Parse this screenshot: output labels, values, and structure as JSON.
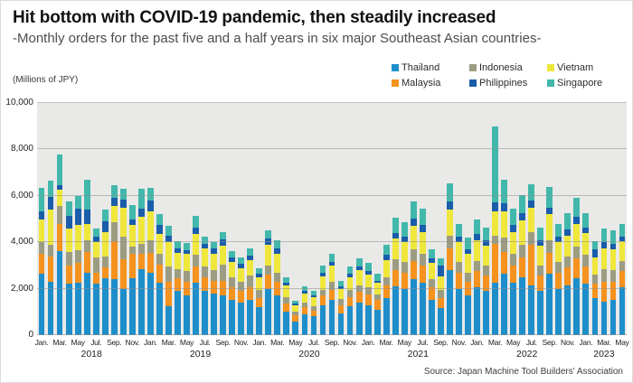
{
  "header": {
    "title": "Hit bottom with COVID-19 pandemic, then steadily increased",
    "subtitle": "-Monthly orders for the past five and a half years in six major Southeast Asian countries-"
  },
  "axis_unit_label": "(Millions of JPY)",
  "source": "Source: Japan Machine Tool Builders' Association",
  "legend": {
    "items": [
      "Thailand",
      "Malaysia",
      "Indonesia",
      "Philippines",
      "Vietnam",
      "Singapore"
    ]
  },
  "chart_data": {
    "type": "bar",
    "stacked": true,
    "title": "Hit bottom with COVID-19 pandemic, then steadily increased",
    "ylabel": "(Millions of JPY)",
    "ylim": [
      0,
      10000
    ],
    "y_ticks": [
      0,
      2000,
      4000,
      6000,
      8000,
      10000
    ],
    "y_tick_labels": [
      "0",
      "2,000",
      "4,000",
      "6,000",
      "8,000",
      "10,000"
    ],
    "x_month_ticks": [
      "Jan.",
      "Mar.",
      "May",
      "Jul.",
      "Sep.",
      "Nov."
    ],
    "years": [
      {
        "label": "2018",
        "months": 12
      },
      {
        "label": "2019",
        "months": 12
      },
      {
        "label": "2020",
        "months": 12
      },
      {
        "label": "2021",
        "months": 12
      },
      {
        "label": "2022",
        "months": 12
      },
      {
        "label": "2023",
        "months": 5
      }
    ],
    "stack_order": "bottom to top: Thailand, Malaysia, Indonesia, Vietnam, Philippines, Singapore",
    "series": [
      {
        "name": "Thailand",
        "color": "#1e8ecb",
        "values": [
          2650,
          2300,
          3600,
          2200,
          2250,
          2700,
          2200,
          2450,
          2400,
          2000,
          2450,
          2850,
          2700,
          2250,
          1250,
          1900,
          1700,
          2250,
          1900,
          1800,
          1700,
          1500,
          1400,
          1500,
          1200,
          2000,
          1700,
          1000,
          600,
          900,
          800,
          1300,
          1500,
          950,
          1250,
          1400,
          1300,
          1100,
          1600,
          2100,
          2000,
          2400,
          2250,
          1500,
          1150,
          2800,
          2000,
          1700,
          2050,
          1900,
          2250,
          2650,
          2250,
          2500,
          2150,
          1900,
          2650,
          2000,
          2150,
          2450,
          2200,
          1600,
          1450,
          1500,
          2050
        ]
      },
      {
        "name": "Malaysia",
        "color": "#f6921e",
        "values": [
          850,
          1100,
          1200,
          800,
          850,
          900,
          500,
          450,
          1650,
          1250,
          1050,
          650,
          850,
          800,
          1050,
          550,
          600,
          700,
          600,
          550,
          650,
          550,
          500,
          550,
          400,
          600,
          600,
          350,
          250,
          300,
          250,
          400,
          450,
          350,
          400,
          450,
          450,
          400,
          550,
          700,
          700,
          800,
          750,
          550,
          450,
          950,
          700,
          600,
          700,
          650,
          1700,
          950,
          750,
          850,
          1750,
          650,
          900,
          700,
          750,
          850,
          750,
          600,
          850,
          800,
          700
        ]
      },
      {
        "name": "Indonesia",
        "color": "#9c9c82",
        "values": [
          500,
          500,
          750,
          600,
          550,
          500,
          650,
          500,
          800,
          1000,
          300,
          450,
          550,
          450,
          650,
          400,
          450,
          500,
          450,
          450,
          700,
          450,
          400,
          500,
          350,
          400,
          400,
          300,
          150,
          200,
          200,
          250,
          350,
          250,
          300,
          300,
          300,
          250,
          350,
          450,
          450,
          500,
          500,
          350,
          350,
          550,
          450,
          400,
          450,
          450,
          320,
          600,
          500,
          550,
          550,
          450,
          550,
          450,
          500,
          500,
          500,
          400,
          550,
          500,
          450
        ]
      },
      {
        "name": "Vietnam",
        "color": "#efe73c",
        "values": [
          1000,
          1500,
          700,
          1000,
          1100,
          700,
          650,
          1050,
          700,
          1250,
          950,
          1150,
          1250,
          850,
          1050,
          700,
          750,
          900,
          800,
          700,
          800,
          650,
          600,
          700,
          550,
          900,
          800,
          500,
          300,
          400,
          400,
          600,
          700,
          450,
          550,
          650,
          550,
          500,
          750,
          900,
          850,
          1000,
          950,
          700,
          600,
          1100,
          850,
          800,
          900,
          850,
          1060,
          1150,
          950,
          1050,
          1050,
          850,
          1100,
          850,
          900,
          1000,
          950,
          750,
          900,
          900,
          850
        ]
      },
      {
        "name": "Philippines",
        "color": "#1a5dab",
        "values": [
          350,
          550,
          200,
          550,
          700,
          600,
          250,
          450,
          350,
          350,
          250,
          350,
          450,
          400,
          300,
          180,
          170,
          280,
          190,
          220,
          270,
          180,
          180,
          190,
          150,
          250,
          250,
          100,
          50,
          100,
          80,
          150,
          150,
          100,
          150,
          150,
          150,
          100,
          200,
          250,
          250,
          320,
          300,
          200,
          450,
          350,
          250,
          200,
          250,
          250,
          390,
          350,
          300,
          300,
          300,
          250,
          300,
          250,
          250,
          300,
          250,
          350,
          250,
          250,
          200
        ]
      },
      {
        "name": "Singapore",
        "color": "#41b8ab",
        "values": [
          1000,
          700,
          1350,
          600,
          550,
          1300,
          350,
          500,
          550,
          450,
          600,
          850,
          550,
          450,
          400,
          300,
          300,
          500,
          300,
          300,
          300,
          300,
          250,
          300,
          250,
          350,
          350,
          250,
          150,
          200,
          170,
          300,
          350,
          250,
          300,
          350,
          350,
          300,
          450,
          650,
          600,
          750,
          700,
          400,
          300,
          800,
          550,
          500,
          650,
          550,
          3280,
          1000,
          700,
          800,
          700,
          550,
          900,
          550,
          700,
          800,
          600,
          350,
          600,
          550,
          550
        ]
      }
    ]
  }
}
